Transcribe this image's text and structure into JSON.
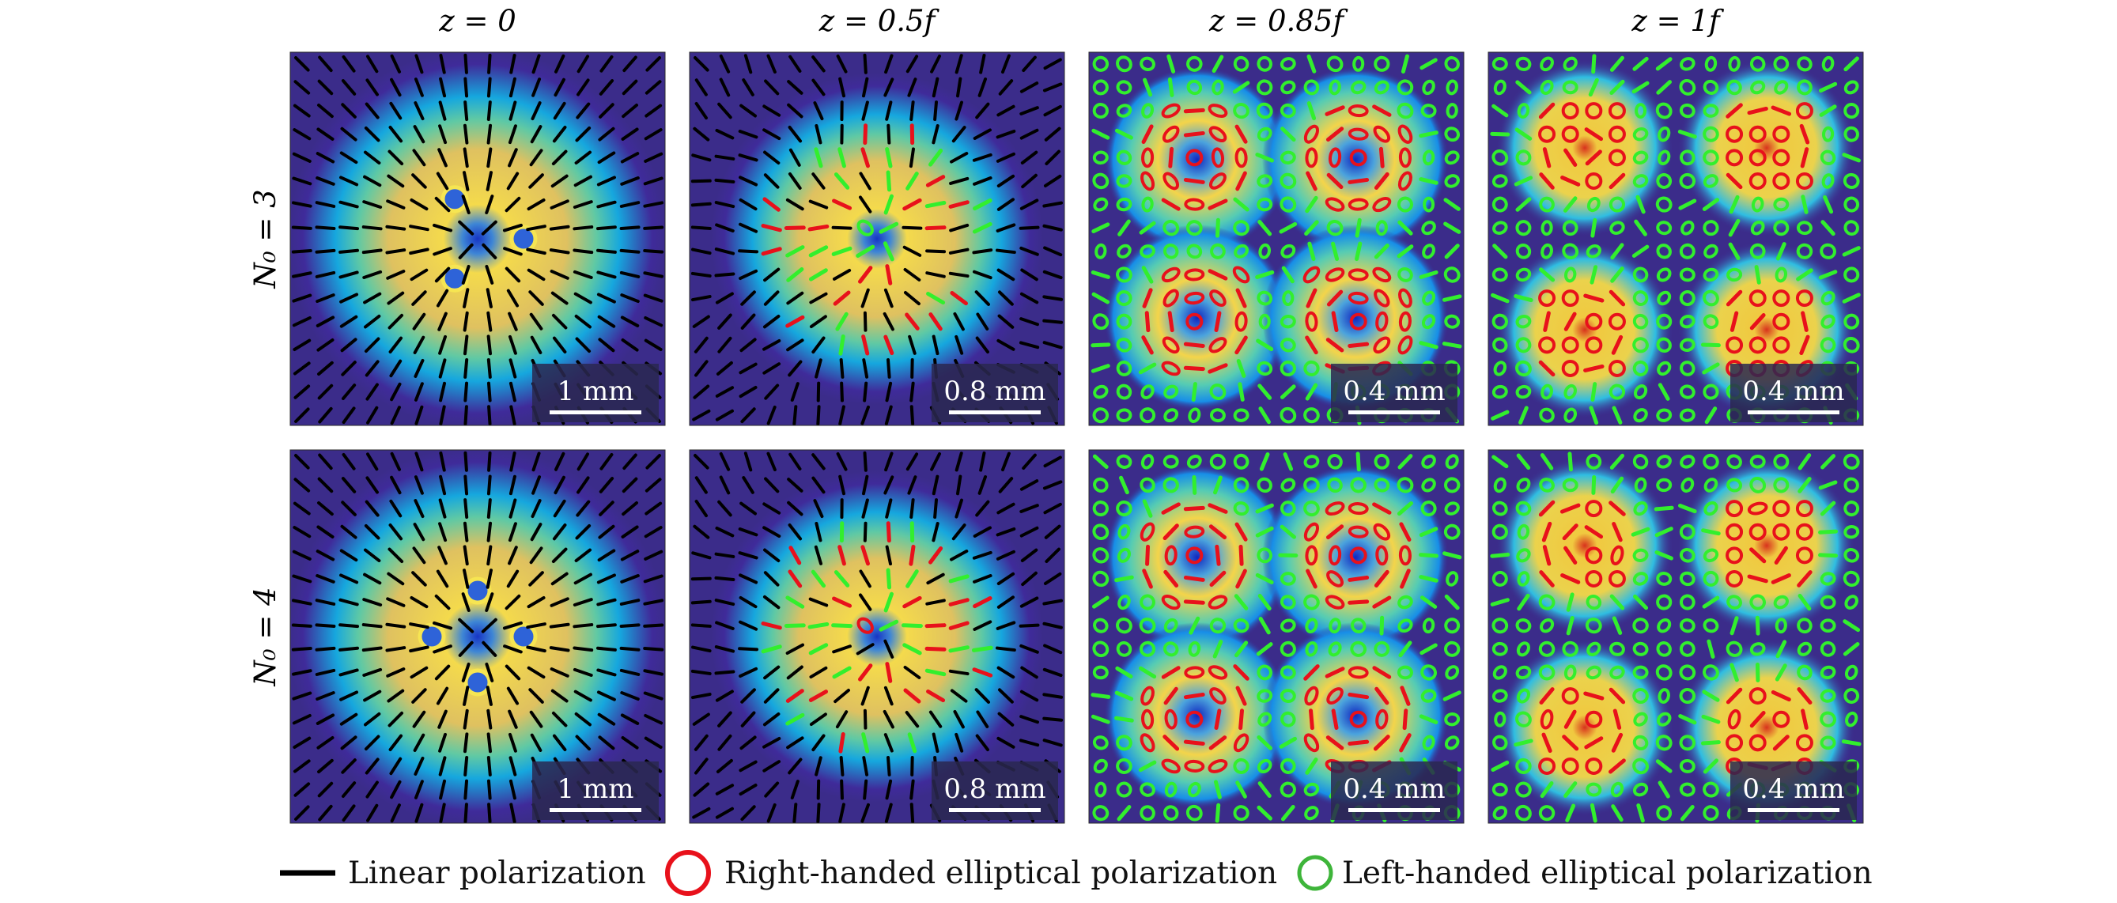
{
  "columns": [
    {
      "z_label": "z = 0",
      "scale_bar": "1 mm"
    },
    {
      "z_label": "z = 0.5f",
      "scale_bar": "0.8 mm"
    },
    {
      "z_label": "z = 0.85f",
      "scale_bar": "0.4 mm"
    },
    {
      "z_label": "z = 1f",
      "scale_bar": "0.4 mm"
    }
  ],
  "rows": [
    {
      "n_label": "N₀ = 3"
    },
    {
      "n_label": "N₀ = 4"
    }
  ],
  "legend": {
    "linear": "Linear polarization",
    "right": "Right-handed elliptical polarization",
    "left": "Left-handed elliptical polarization"
  },
  "colors": {
    "background": "#3b2c8a",
    "linear": "#000000",
    "right": "#e8111b",
    "left": "#32ef2d"
  }
}
